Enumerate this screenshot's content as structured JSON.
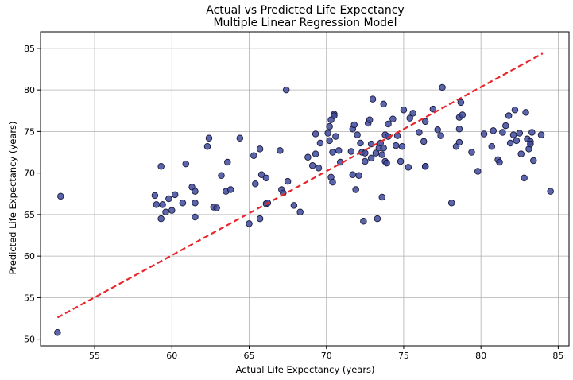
{
  "chart_data": {
    "type": "scatter",
    "title": "Actual vs Predicted Life Expectancy",
    "subtitle": "Multiple Linear Regression Model",
    "xlabel": "Actual Life Expectancy (years)",
    "ylabel": "Predicted Life Expectancy (years)",
    "xlim": [
      51.5,
      85.7
    ],
    "ylim": [
      49.2,
      87.0
    ],
    "xticks": [
      55,
      60,
      65,
      70,
      75,
      80,
      85
    ],
    "yticks": [
      50,
      55,
      60,
      65,
      70,
      75,
      80,
      85
    ],
    "grid": true,
    "reference_line": {
      "x": [
        52.6,
        84.0
      ],
      "y": [
        52.6,
        84.4
      ],
      "style": "dashed",
      "color": "#e8262b"
    },
    "point_color": "#3e4a9e",
    "points": [
      [
        52.6,
        50.8
      ],
      [
        52.8,
        67.2
      ],
      [
        58.9,
        67.3
      ],
      [
        59.0,
        66.2
      ],
      [
        59.3,
        64.5
      ],
      [
        59.3,
        70.8
      ],
      [
        59.4,
        66.2
      ],
      [
        59.6,
        65.3
      ],
      [
        59.8,
        66.9
      ],
      [
        60.0,
        65.5
      ],
      [
        60.2,
        67.4
      ],
      [
        60.7,
        66.4
      ],
      [
        60.9,
        71.1
      ],
      [
        61.3,
        68.3
      ],
      [
        61.5,
        64.7
      ],
      [
        61.5,
        67.8
      ],
      [
        61.5,
        66.4
      ],
      [
        62.3,
        73.2
      ],
      [
        62.4,
        74.2
      ],
      [
        62.7,
        65.9
      ],
      [
        62.9,
        65.8
      ],
      [
        63.2,
        69.7
      ],
      [
        63.5,
        67.8
      ],
      [
        63.6,
        71.3
      ],
      [
        63.8,
        68.0
      ],
      [
        64.4,
        74.2
      ],
      [
        65.0,
        63.9
      ],
      [
        65.3,
        72.1
      ],
      [
        65.4,
        68.7
      ],
      [
        65.7,
        64.5
      ],
      [
        65.7,
        72.9
      ],
      [
        65.8,
        69.8
      ],
      [
        66.1,
        69.4
      ],
      [
        66.1,
        66.3
      ],
      [
        66.2,
        66.4
      ],
      [
        67.0,
        72.7
      ],
      [
        67.1,
        68.0
      ],
      [
        67.2,
        67.6
      ],
      [
        67.4,
        80.0
      ],
      [
        67.5,
        69.0
      ],
      [
        67.9,
        66.1
      ],
      [
        68.3,
        65.3
      ],
      [
        68.8,
        71.9
      ],
      [
        69.1,
        70.9
      ],
      [
        69.3,
        74.7
      ],
      [
        69.3,
        72.3
      ],
      [
        69.5,
        70.6
      ],
      [
        69.6,
        73.6
      ],
      [
        70.1,
        74.8
      ],
      [
        70.2,
        75.6
      ],
      [
        70.2,
        73.9
      ],
      [
        70.3,
        69.5
      ],
      [
        70.3,
        76.4
      ],
      [
        70.4,
        68.9
      ],
      [
        70.4,
        72.5
      ],
      [
        70.5,
        77.1
      ],
      [
        70.5,
        76.9
      ],
      [
        70.6,
        74.4
      ],
      [
        70.8,
        72.7
      ],
      [
        70.9,
        71.3
      ],
      [
        71.6,
        72.6
      ],
      [
        71.7,
        69.8
      ],
      [
        71.7,
        75.3
      ],
      [
        71.8,
        75.8
      ],
      [
        71.9,
        68.0
      ],
      [
        72.0,
        74.6
      ],
      [
        72.1,
        69.7
      ],
      [
        72.2,
        73.6
      ],
      [
        72.3,
        72.5
      ],
      [
        72.4,
        64.2
      ],
      [
        72.5,
        71.4
      ],
      [
        72.5,
        72.4
      ],
      [
        72.7,
        76.0
      ],
      [
        72.8,
        76.4
      ],
      [
        72.9,
        73.5
      ],
      [
        72.9,
        71.8
      ],
      [
        73.0,
        78.9
      ],
      [
        73.2,
        72.4
      ],
      [
        73.3,
        64.5
      ],
      [
        73.4,
        73.0
      ],
      [
        73.5,
        73.6
      ],
      [
        73.6,
        72.2
      ],
      [
        73.6,
        67.1
      ],
      [
        73.7,
        78.3
      ],
      [
        73.7,
        73.0
      ],
      [
        73.8,
        74.6
      ],
      [
        73.8,
        71.4
      ],
      [
        73.9,
        71.2
      ],
      [
        74.0,
        75.9
      ],
      [
        74.0,
        74.4
      ],
      [
        74.3,
        76.5
      ],
      [
        74.5,
        73.3
      ],
      [
        74.6,
        74.5
      ],
      [
        74.8,
        71.4
      ],
      [
        74.9,
        73.2
      ],
      [
        75.0,
        77.6
      ],
      [
        75.3,
        70.7
      ],
      [
        75.4,
        76.6
      ],
      [
        75.6,
        77.2
      ],
      [
        76.0,
        74.9
      ],
      [
        76.3,
        73.8
      ],
      [
        76.4,
        70.8
      ],
      [
        76.4,
        70.8
      ],
      [
        76.4,
        76.2
      ],
      [
        76.9,
        77.7
      ],
      [
        77.2,
        75.2
      ],
      [
        77.4,
        74.5
      ],
      [
        77.5,
        80.3
      ],
      [
        78.1,
        66.4
      ],
      [
        78.4,
        73.2
      ],
      [
        78.6,
        73.7
      ],
      [
        78.6,
        75.3
      ],
      [
        78.6,
        76.7
      ],
      [
        78.7,
        78.5
      ],
      [
        78.8,
        77.0
      ],
      [
        79.4,
        72.5
      ],
      [
        79.8,
        70.2
      ],
      [
        80.2,
        74.7
      ],
      [
        80.7,
        73.2
      ],
      [
        80.8,
        75.1
      ],
      [
        81.1,
        71.6
      ],
      [
        81.2,
        71.3
      ],
      [
        81.4,
        74.9
      ],
      [
        81.6,
        75.7
      ],
      [
        81.8,
        76.9
      ],
      [
        81.9,
        73.6
      ],
      [
        82.1,
        74.6
      ],
      [
        82.2,
        77.6
      ],
      [
        82.3,
        73.9
      ],
      [
        82.5,
        74.8
      ],
      [
        82.6,
        72.3
      ],
      [
        82.8,
        69.4
      ],
      [
        82.9,
        77.3
      ],
      [
        83.0,
        74.1
      ],
      [
        83.1,
        72.9
      ],
      [
        83.2,
        73.8
      ],
      [
        83.2,
        73.5
      ],
      [
        83.3,
        74.9
      ],
      [
        83.4,
        71.5
      ],
      [
        83.9,
        74.6
      ],
      [
        84.5,
        67.8
      ]
    ]
  }
}
